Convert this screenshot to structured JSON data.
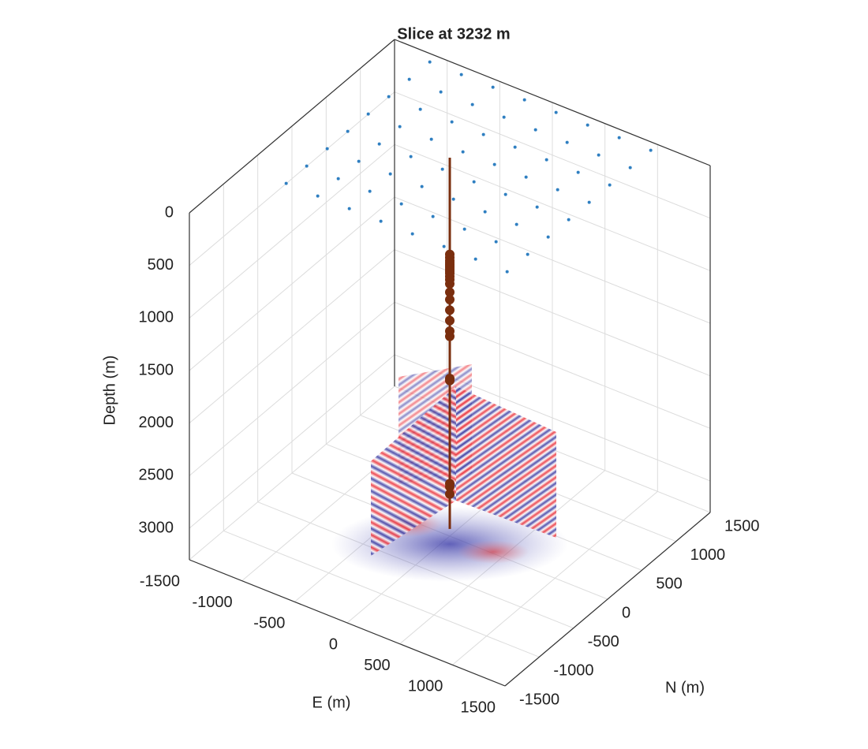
{
  "chart_data": {
    "type": "scatter3d",
    "title": "Slice at 3232 m",
    "xlabel": "E (m)",
    "ylabel": "N (m)",
    "zlabel": "Depth (m)",
    "xlim": [
      -1500,
      1500
    ],
    "ylim": [
      -1500,
      1500
    ],
    "zlim": [
      0,
      3300
    ],
    "xticks": [
      -1500,
      -1000,
      -500,
      0,
      500,
      1000,
      1500
    ],
    "yticks": [
      -1500,
      -1000,
      -500,
      0,
      500,
      1000,
      1500
    ],
    "zticks": [
      0,
      500,
      1000,
      1500,
      2000,
      2500,
      3000
    ],
    "grid": true,
    "series": [
      {
        "color": "#2f7fc1",
        "x": [
          -1100,
          -800,
          -500,
          -200,
          100,
          400,
          700,
          1000,
          -1100,
          -800,
          -500,
          -200,
          100,
          400,
          700,
          1000,
          -1100,
          -800,
          -500,
          -200,
          100,
          400,
          700,
          1000,
          -1100,
          -800,
          -500,
          -200,
          100,
          400,
          700,
          1000,
          -1100,
          -800,
          -500,
          -200,
          100,
          400,
          700,
          1000,
          -1100,
          -800,
          -500,
          -200,
          100,
          400,
          700,
          1000,
          -1100,
          -800,
          -500,
          -200,
          100,
          400,
          700,
          1000,
          -1100,
          -800,
          -500,
          -200,
          100,
          400,
          700,
          1000
        ],
        "y": [
          -700,
          -700,
          -700,
          -700,
          -700,
          -700,
          -700,
          -700,
          -400,
          -400,
          -400,
          -400,
          -400,
          -400,
          -400,
          -400,
          -100,
          -100,
          -100,
          -100,
          -100,
          -100,
          -100,
          -100,
          200,
          200,
          200,
          200,
          200,
          200,
          200,
          200,
          500,
          500,
          500,
          500,
          500,
          500,
          500,
          500,
          800,
          800,
          800,
          800,
          800,
          800,
          800,
          800,
          1100,
          1100,
          1100,
          1100,
          1100,
          1100,
          1100,
          1100,
          1400,
          1400,
          1400,
          1400,
          1400,
          1400,
          1400,
          1400
        ],
        "z": [
          0,
          0,
          0,
          0,
          0,
          0,
          0,
          0,
          0,
          0,
          0,
          0,
          0,
          0,
          0,
          0,
          0,
          0,
          0,
          0,
          0,
          0,
          0,
          0,
          0,
          0,
          0,
          0,
          0,
          0,
          0,
          0,
          0,
          0,
          0,
          0,
          0,
          0,
          0,
          0,
          0,
          0,
          0,
          0,
          0,
          0,
          0,
          0,
          0,
          0,
          0,
          0,
          0,
          0,
          0,
          0,
          0,
          0,
          0,
          0,
          0,
          0,
          0,
          0
        ]
      },
      {
        "color": "#7a2e0e",
        "x": [
          0,
          0,
          0,
          0,
          0,
          0,
          0,
          0,
          0,
          0,
          0,
          0,
          0,
          0,
          0,
          0,
          0,
          0,
          0,
          0,
          0,
          0,
          0
        ],
        "y": [
          0,
          0,
          0,
          0,
          0,
          0,
          0,
          0,
          0,
          0,
          0,
          0,
          0,
          0,
          0,
          0,
          0,
          0,
          0,
          0,
          0,
          0,
          0
        ],
        "z": [
          620,
          650,
          680,
          700,
          720,
          740,
          760,
          780,
          800,
          830,
          860,
          900,
          980,
          1050,
          1150,
          1250,
          1350,
          1400,
          1800,
          1820,
          2800,
          2830,
          2900
        ]
      }
    ],
    "well": {
      "color": "#7a2e0e",
      "x": [
        0,
        0
      ],
      "y": [
        0,
        0
      ],
      "z": [
        -300,
        3232
      ]
    }
  }
}
